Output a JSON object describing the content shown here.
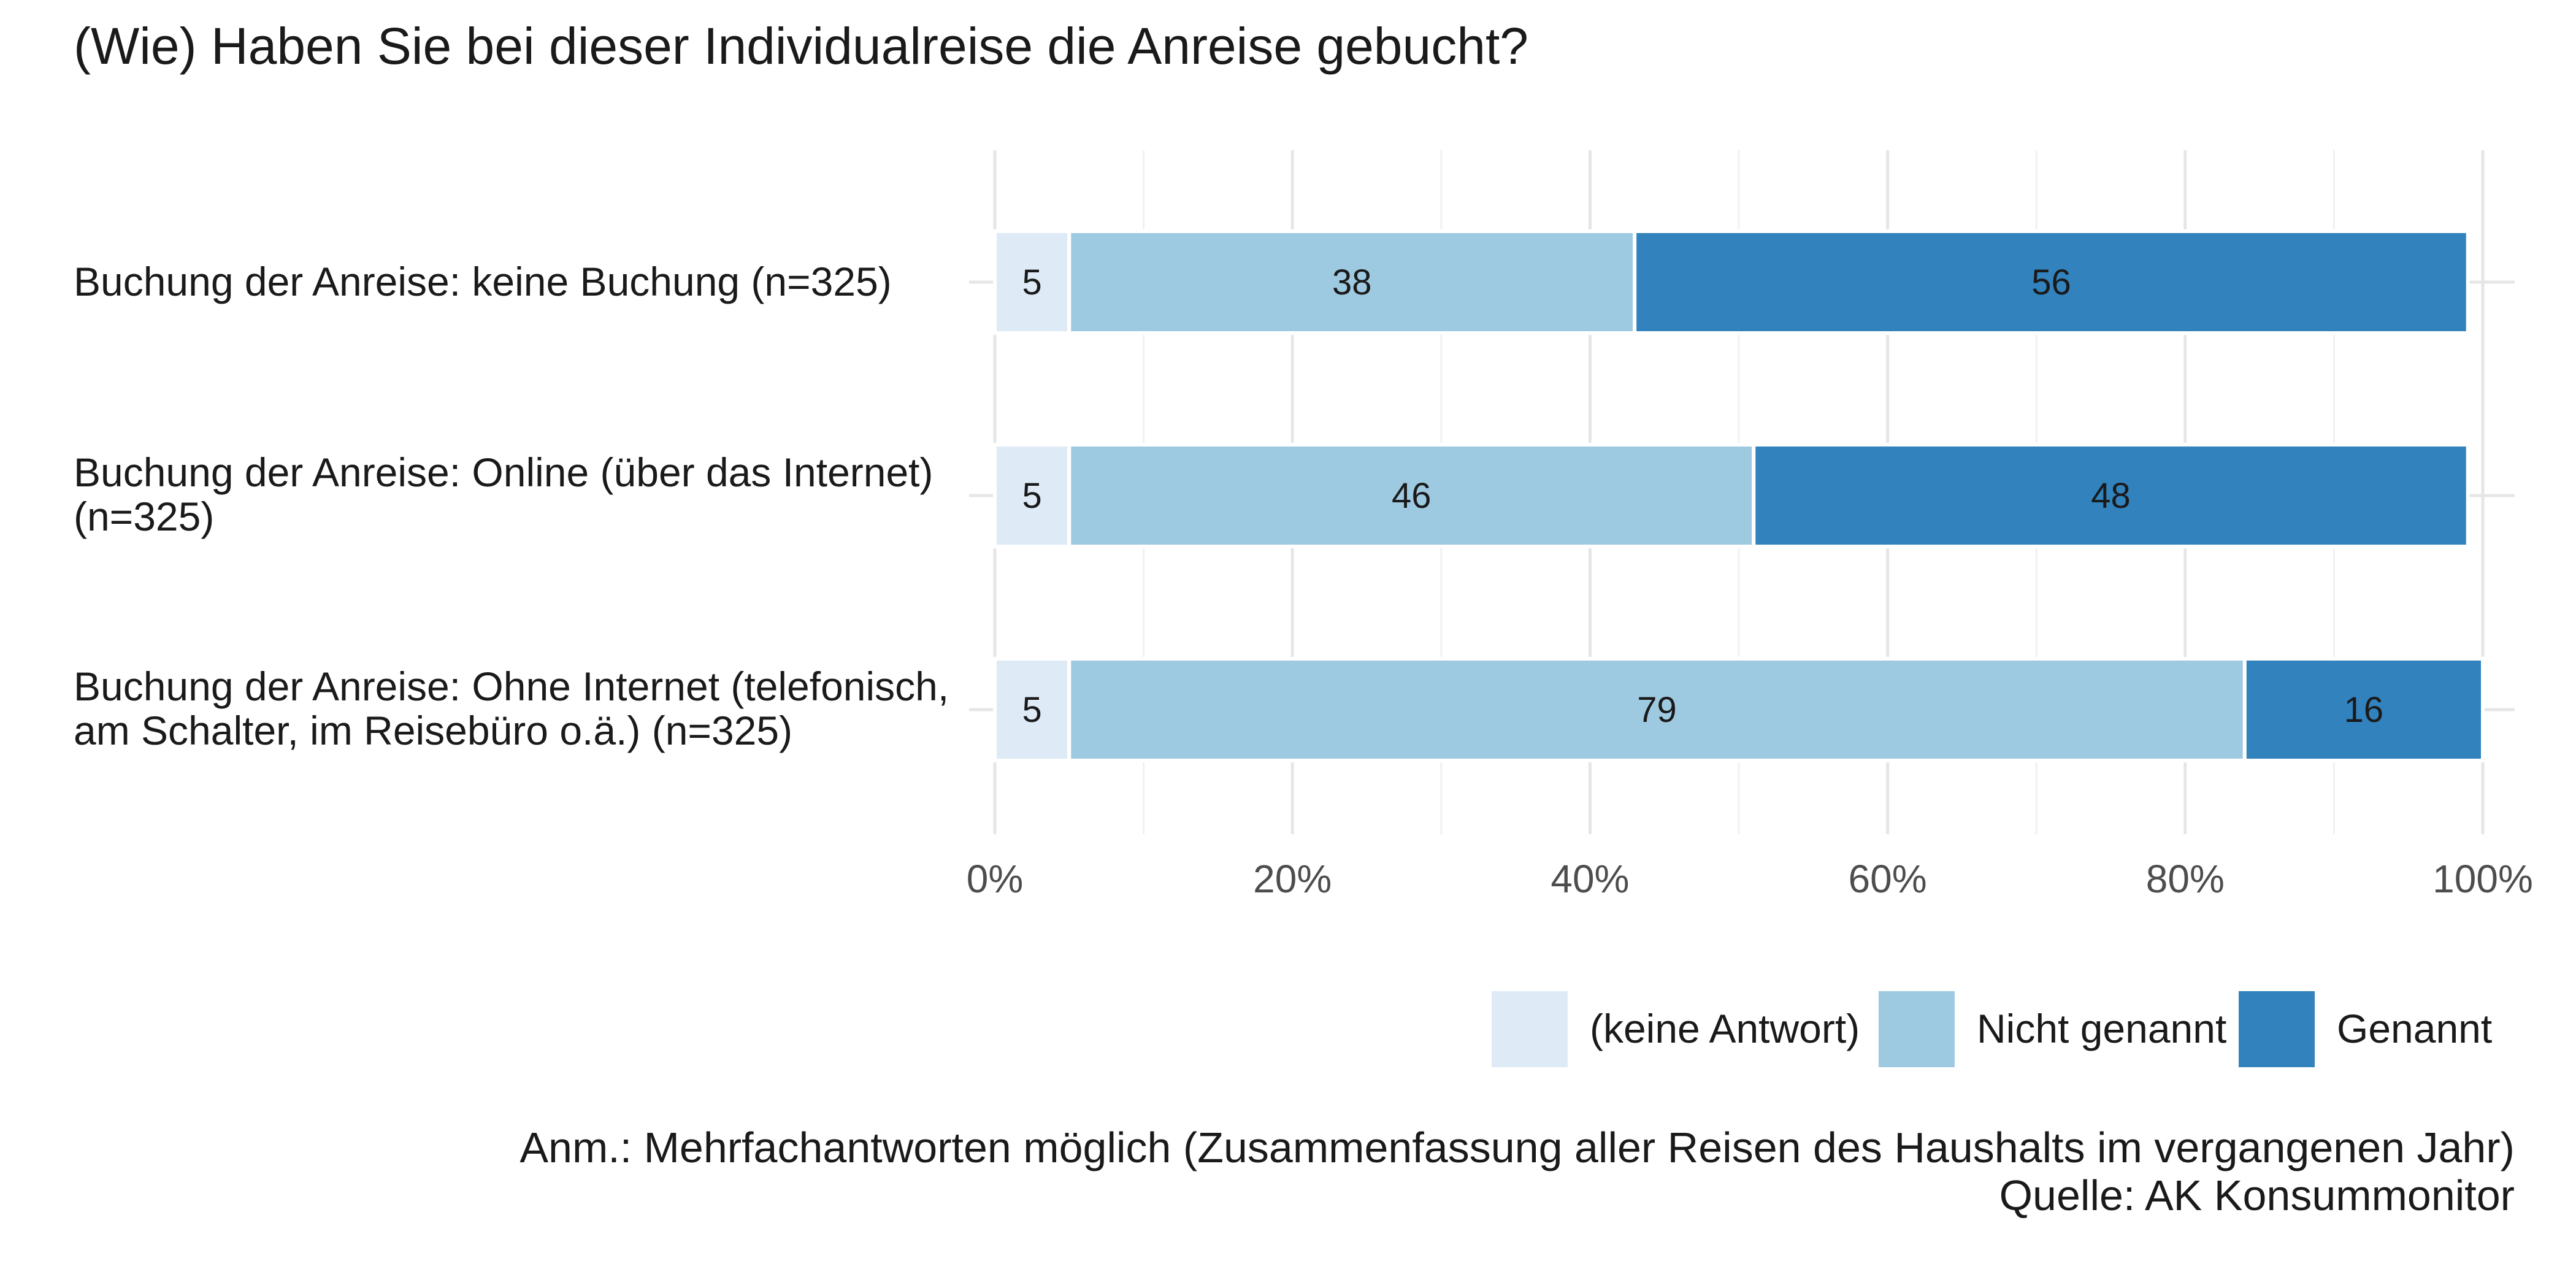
{
  "chart_data": {
    "type": "bar",
    "orientation": "horizontal",
    "stacked": true,
    "title": "(Wie) Haben Sie bei dieser Individualreise die Anreise gebucht?",
    "categories": [
      {
        "line1": "Buchung der Anreise: keine Buchung (n=325)",
        "line2": ""
      },
      {
        "line1": "Buchung der Anreise: Online (über das Internet)",
        "line2": "(n=325)"
      },
      {
        "line1": "Buchung der Anreise: Ohne Internet (telefonisch,",
        "line2": "am Schalter, im Reisebüro o.ä.) (n=325)"
      }
    ],
    "series": [
      {
        "name": "(keine Antwort)",
        "color": "#deebf7",
        "values": [
          5,
          5,
          5
        ],
        "labels": [
          "5",
          "5",
          "5"
        ]
      },
      {
        "name": "Nicht genannt",
        "color": "#9ecae1",
        "values": [
          38,
          46,
          79
        ],
        "labels": [
          "38",
          "46",
          "79"
        ]
      },
      {
        "name": "Genannt",
        "color": "#3182bd",
        "values": [
          56,
          48,
          16
        ],
        "labels": [
          "56",
          "48",
          "16"
        ]
      }
    ],
    "xlim": [
      0,
      100
    ],
    "xticks": [
      0,
      20,
      40,
      60,
      80,
      100
    ],
    "xtick_labels": [
      "0%",
      "20%",
      "40%",
      "60%",
      "80%",
      "100%"
    ],
    "grid": true,
    "legend_position": "bottom-right",
    "notes": [
      "Anm.: Mehrfachantworten möglich (Zusammenfassung aller Reisen des Haushalts im vergangenen Jahr)",
      "Quelle: AK Konsummonitor"
    ]
  }
}
